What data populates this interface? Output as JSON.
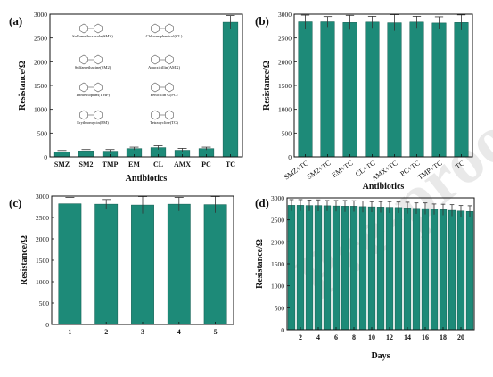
{
  "figure": {
    "bar_color": "#1d8a78",
    "bar_edge": "#0f5a4e",
    "error_color": "#333333",
    "watermark": "Pre-proof"
  },
  "chart_data": [
    {
      "panel": "(a)",
      "type": "bar",
      "categories": [
        "SMZ",
        "SM2",
        "TMP",
        "EM",
        "CL",
        "AMX",
        "PC",
        "TC"
      ],
      "values": [
        105,
        125,
        120,
        175,
        195,
        140,
        175,
        2830
      ],
      "errors": [
        30,
        30,
        35,
        30,
        40,
        40,
        30,
        140
      ],
      "xlabel": "Antibiotics",
      "ylabel": "Resistance/Ω",
      "ylim": [
        0,
        3000
      ],
      "yticks": [
        0,
        500,
        1000,
        1500,
        2000,
        2500,
        3000
      ],
      "inset_structures": [
        "Sulfamethoxazole(SMZ)",
        "Chloramphenicol(CL)",
        "Sulfamethazine(SM2)",
        "Amoxicillin(AMX)",
        "Trimethoprim(TMP)",
        "Penicillin G(PC)",
        "Erythromycin(EM)",
        "Tetracycline(TC)"
      ]
    },
    {
      "panel": "(b)",
      "type": "bar",
      "categories": [
        "SMZ+TC",
        "SM2+TC",
        "EM+TC",
        "CL+TC",
        "AMX+TC",
        "PC+TC",
        "TMP+TC",
        "TC"
      ],
      "values": [
        2840,
        2840,
        2825,
        2835,
        2820,
        2835,
        2815,
        2825
      ],
      "errors": [
        140,
        110,
        150,
        120,
        170,
        120,
        130,
        160
      ],
      "xlabel": "Antibiotics",
      "ylabel": "Resistance/Ω",
      "ylim": [
        0,
        3000
      ],
      "yticks": [
        0,
        500,
        1000,
        1500,
        2000,
        2500,
        3000
      ]
    },
    {
      "panel": "(c)",
      "type": "bar",
      "categories": [
        "1",
        "2",
        "3",
        "4",
        "5"
      ],
      "values": [
        2820,
        2810,
        2790,
        2810,
        2800
      ],
      "errors": [
        150,
        110,
        200,
        160,
        190
      ],
      "xlabel": "",
      "ylabel": "Resistance/Ω",
      "ylim": [
        0,
        3000
      ],
      "yticks": [
        0,
        500,
        1000,
        1500,
        2000,
        2500,
        3000
      ]
    },
    {
      "panel": "(d)",
      "type": "bar",
      "x": [
        1,
        2,
        3,
        4,
        5,
        6,
        7,
        8,
        9,
        10,
        11,
        12,
        13,
        14,
        15,
        16,
        17,
        18,
        19,
        20,
        21
      ],
      "values": [
        2830,
        2830,
        2825,
        2825,
        2820,
        2815,
        2810,
        2810,
        2800,
        2795,
        2790,
        2785,
        2780,
        2770,
        2760,
        2755,
        2740,
        2730,
        2715,
        2700,
        2690
      ],
      "errors": [
        130,
        130,
        125,
        130,
        120,
        125,
        130,
        125,
        130,
        120,
        125,
        130,
        125,
        130,
        125,
        130,
        120,
        125,
        130,
        125,
        130
      ],
      "xticks": [
        2,
        4,
        6,
        8,
        10,
        12,
        14,
        16,
        18,
        20
      ],
      "xlabel": "Days",
      "ylabel": "Resistance/Ω",
      "ylim": [
        0,
        3000
      ],
      "yticks": [
        0,
        500,
        1000,
        1500,
        2000,
        2500,
        3000
      ]
    }
  ]
}
